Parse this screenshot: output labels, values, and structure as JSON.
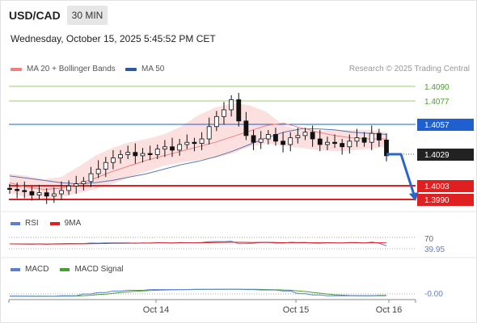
{
  "header": {
    "symbol": "USD/CAD",
    "timeframe": "30 MIN",
    "datetime": "Wednesday, October 15, 2025 5:45:52 PM CET"
  },
  "legend": {
    "ma20": {
      "label": "MA 20 + Bollinger Bands",
      "color": "#f08080"
    },
    "ma50": {
      "label": "MA 50",
      "color": "#2c5aa0"
    },
    "credit": "Research © 2025 Trading Central"
  },
  "price_levels": [
    {
      "value": "1.4090",
      "role": "resistance",
      "color": "#6aaa2c"
    },
    {
      "value": "1.4077",
      "role": "resistance",
      "color": "#6aaa2c"
    },
    {
      "value": "1.4057",
      "role": "pivot",
      "color": "#1f5fcf"
    },
    {
      "value": "1.4029",
      "role": "last",
      "color": "#222222"
    },
    {
      "value": "1.4003",
      "role": "target",
      "color": "#e02020"
    },
    {
      "value": "1.3990",
      "role": "target",
      "color": "#e02020"
    }
  ],
  "rsi": {
    "label": "RSI",
    "ma_label": "9MA",
    "color": "#5b7fd6",
    "ma_color": "#e02020",
    "levels": [
      "70",
      "39.95"
    ]
  },
  "macd": {
    "label": "MACD",
    "signal_label": "MACD Signal",
    "color": "#5b7fd6",
    "signal_color": "#4aa02c",
    "value": "-0.00"
  },
  "x_axis": {
    "labels": [
      "Oct 14",
      "Oct 15",
      "Oct 16"
    ]
  },
  "chart_data": {
    "type": "candlestick",
    "title": "USD/CAD",
    "timeframe": "30 MIN",
    "y_axis_labels": [
      "1.4090",
      "1.4077",
      "1.4057",
      "1.4029",
      "1.4003",
      "1.3990"
    ],
    "x_axis_labels": [
      "Oct 14",
      "Oct 15",
      "Oct 16"
    ],
    "close_series": [
      1.3999,
      1.3998,
      1.3997,
      1.3994,
      1.3996,
      1.3993,
      1.3995,
      1.3998,
      1.4002,
      1.4004,
      1.4006,
      1.4013,
      1.4017,
      1.4023,
      1.4027,
      1.403,
      1.4032,
      1.4029,
      1.4031,
      1.403,
      1.4035,
      1.4037,
      1.4034,
      1.4039,
      1.4041,
      1.404,
      1.4044,
      1.4055,
      1.4064,
      1.407,
      1.4079,
      1.406,
      1.4047,
      1.4041,
      1.4044,
      1.4048,
      1.4042,
      1.4039,
      1.4045,
      1.4047,
      1.405,
      1.4044,
      1.4039,
      1.4041,
      1.404,
      1.4037,
      1.4042,
      1.4045,
      1.4041,
      1.4049,
      1.4043,
      1.4029
    ],
    "ma50": [
      1.4011,
      1.4009,
      1.4007,
      1.4005,
      1.4004,
      1.4005,
      1.4007,
      1.401,
      1.4013,
      1.4017,
      1.4021,
      1.4024,
      1.4028,
      1.4033,
      1.4039,
      1.4045,
      1.405,
      1.4053,
      1.4053,
      1.4052,
      1.405,
      1.4049,
      1.4048
    ],
    "ma20": [
      1.4005,
      1.4001,
      1.3999,
      1.4,
      1.4004,
      1.4009,
      1.4015,
      1.402,
      1.4025,
      1.4029,
      1.4033,
      1.4037,
      1.4041,
      1.4046,
      1.4051,
      1.4056,
      1.4058,
      1.4054,
      1.405,
      1.4047,
      1.4045,
      1.4044,
      1.4044
    ],
    "bb_upper": [
      1.4013,
      1.4011,
      1.4008,
      1.401,
      1.4019,
      1.4029,
      1.4036,
      1.4041,
      1.4044,
      1.4048,
      1.4055,
      1.4065,
      1.4072,
      1.4076,
      1.4074,
      1.4068,
      1.4056,
      1.4052,
      1.4051,
      1.4052,
      1.4052,
      1.4052,
      1.405
    ],
    "bb_lower": [
      1.3996,
      1.3992,
      1.399,
      1.3992,
      1.3996,
      1.3999,
      1.4004,
      1.401,
      1.4015,
      1.402,
      1.4023,
      1.4025,
      1.4027,
      1.4031,
      1.4037,
      1.404,
      1.4038,
      1.4036,
      1.4034,
      1.4033,
      1.4034,
      1.4035,
      1.4037
    ],
    "resistance": [
      1.409,
      1.4077
    ],
    "pivot": 1.4057,
    "last": 1.4029,
    "targets": [
      1.4003,
      1.399
    ],
    "rsi_latest": 39.95,
    "rsi_overbought": 70,
    "macd_latest": -0.0
  }
}
